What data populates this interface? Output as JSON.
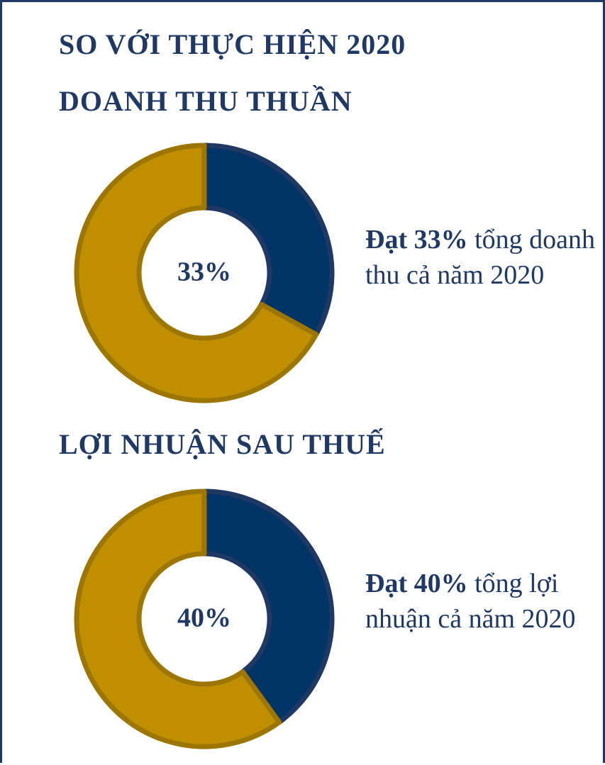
{
  "title": "SO VỚI THỰC HIỆN 2020",
  "chart_data": [
    {
      "type": "pie",
      "title": "DOANH THU THUẦN",
      "values": [
        33,
        67
      ],
      "value_labels": [
        "33%",
        null
      ],
      "colors": [
        "#003366",
        "#bf8f00"
      ],
      "donut": true,
      "annotation_bold": "Đạt 33%",
      "annotation": "tổng doanh thu cả năm 2020"
    },
    {
      "type": "pie",
      "title": "LỢI NHUẬN SAU THUẾ",
      "values": [
        40,
        60
      ],
      "value_labels": [
        "40%",
        null
      ],
      "colors": [
        "#003366",
        "#bf8f00"
      ],
      "donut": true,
      "annotation_bold": "Đạt 40%",
      "annotation": "tổng lợi nhuận cả năm 2020"
    }
  ]
}
